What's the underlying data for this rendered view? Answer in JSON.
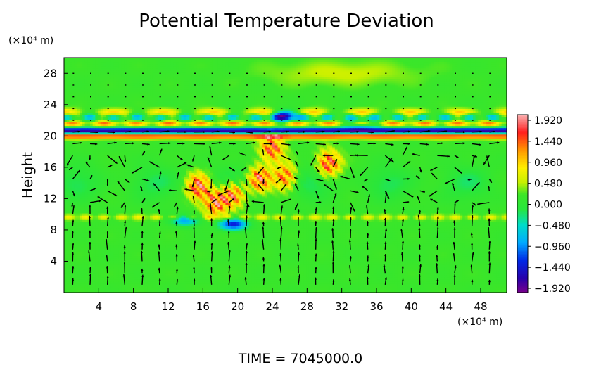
{
  "chart_data": {
    "type": "heatmap",
    "title": "Potential Temperature Deviation",
    "ylabel": "Height",
    "y_unit": "(×10⁴ m)",
    "x_unit": "(×10⁴ m)",
    "footer": "TIME  =  7045000.0",
    "xlim": [
      0,
      51
    ],
    "ylim": [
      0,
      30
    ],
    "x_ticks": [
      "4",
      "8",
      "12",
      "16",
      "20",
      "24",
      "28",
      "32",
      "36",
      "40",
      "44",
      "48"
    ],
    "y_ticks": [
      "4",
      "8",
      "12",
      "16",
      "20",
      "24",
      "28"
    ],
    "colorbar": {
      "min": -1.92,
      "max": 1.92,
      "labels": [
        "1.920",
        "1.440",
        "0.960",
        "0.480",
        "0.000",
        "−0.480",
        "−0.960",
        "−1.440",
        "−1.920"
      ]
    },
    "features": {
      "background_level": 0.15,
      "upper_band": {
        "y_center": 20.6,
        "value": -1.9,
        "overlay_value": 1.5
      },
      "lower_band": {
        "y_center": 9.6,
        "value": 0.6
      },
      "convective_cells": [
        {
          "x": 15.5,
          "y": 13.5,
          "value": 1.9
        },
        {
          "x": 17.5,
          "y": 11.5,
          "value": 1.9
        },
        {
          "x": 19.5,
          "y": 12.5,
          "value": 1.8
        },
        {
          "x": 22.5,
          "y": 14.5,
          "value": 1.9
        },
        {
          "x": 25.5,
          "y": 14.8,
          "value": 1.6
        },
        {
          "x": 30.5,
          "y": 16.5,
          "value": 1.9
        },
        {
          "x": 24,
          "y": 18.4,
          "value": 1.8
        }
      ],
      "cold_spots": [
        {
          "x": 19.5,
          "y": 8.7,
          "value": -1.5
        },
        {
          "x": 14,
          "y": 9.2,
          "value": -1.0
        },
        {
          "x": 25.5,
          "y": 22.5,
          "value": -1.4
        },
        {
          "x": 34,
          "y": 21.5,
          "value": -0.9
        }
      ]
    },
    "vectors": {
      "x_spacing": 2,
      "y_spacing": 1.5
    }
  }
}
